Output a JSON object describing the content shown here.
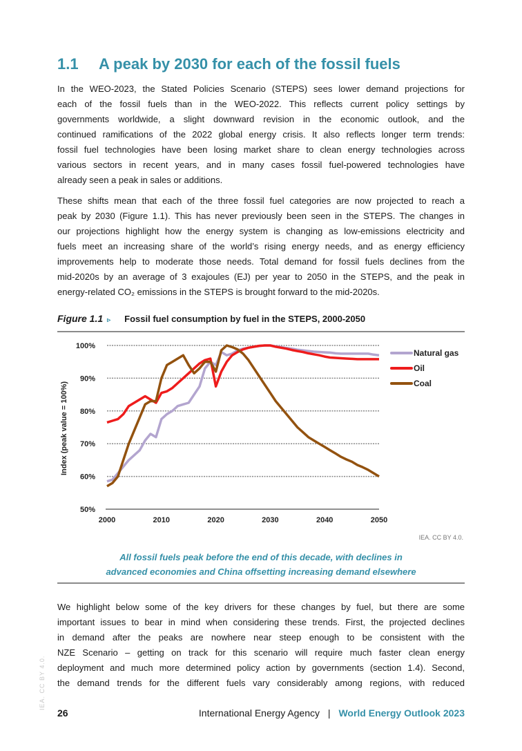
{
  "section": {
    "number": "1.1",
    "title": "A peak by 2030 for each of the fossil fuels"
  },
  "paragraphs": [
    [
      "In the WEO-2023, the Stated Policies Scenario (STEPS) sees lower demand projections for",
      "each of the fossil fuels than in the WEO-2022. This reflects current policy settings by",
      "governments worldwide, a slight downward revision in the economic outlook, and the",
      "continued ramifications of the 2022 global energy crisis. It also reflects longer term trends:",
      "fossil fuel technologies have been losing market share to clean energy technologies across",
      "various sectors in recent years, and in many cases fossil fuel-powered technologies have",
      "already seen a peak in sales or additions."
    ],
    [
      "These shifts mean that each of the three fossil fuel categories are now projected to reach a",
      "peak by 2030 (Figure 1.1). This has never previously been seen in the STEPS. The changes in",
      "our projections highlight how the energy system is changing as low-emissions electricity and",
      "fuels meet an increasing share of the world’s rising energy needs, and as energy efficiency",
      "improvements help to moderate those needs. Total demand for fossil fuels declines from the",
      "mid-2020s by an average of 3 exajoules (EJ) per year to 2050 in the STEPS, and the peak in",
      "energy-related CO₂ emissions in the STEPS is brought forward to the mid-2020s."
    ],
    [
      "We highlight below some of the key drivers for these changes by fuel, but there are some",
      "important issues to bear in mind when considering these trends. First, the projected declines",
      "in demand after the peaks are nowhere near steep enough to be consistent with the",
      "NZE Scenario – getting on track for this scenario will require much faster clean energy",
      "deployment and much more determined policy action by governments (section 1.4). Second,",
      "the demand trends for the different fuels vary considerably among regions, with reduced"
    ]
  ],
  "figure": {
    "label": "Figure 1.1",
    "marker": "▹",
    "title": "Fossil fuel consumption by fuel in the STEPS, 2000-2050",
    "source": "IEA. CC BY 4.0.",
    "caption": [
      "All fossil fuels peak before the end of this decade, with declines in",
      "advanced economies and China offsetting increasing demand elsewhere"
    ]
  },
  "chart_data": {
    "type": "line",
    "title": "Fossil fuel consumption by fuel in the STEPS, 2000-2050",
    "xlabel": "",
    "ylabel": "Index (peak value = 100%)",
    "xlim": [
      2000,
      2050
    ],
    "ylim": [
      50,
      100
    ],
    "xticks": [
      "2000",
      "2010",
      "2020",
      "2030",
      "2040",
      "2050"
    ],
    "yticks": [
      "50%",
      "60%",
      "70%",
      "80%",
      "90%",
      "100%"
    ],
    "ytick_values": [
      50,
      60,
      70,
      80,
      90,
      100
    ],
    "grid": "horizontal dashed",
    "legend": "right",
    "x_start": 2000,
    "series": [
      {
        "name": "Natural gas",
        "color": "#b3a5cf",
        "values": [
          58.5,
          59,
          61,
          63,
          65,
          66.5,
          68,
          71,
          73,
          72,
          77.5,
          79,
          80,
          81.5,
          82,
          82.5,
          85,
          87.5,
          93,
          95,
          94,
          98,
          97,
          97.5,
          98.5,
          99,
          99.3,
          99.6,
          99.8,
          100,
          100,
          99.7,
          99.5,
          99.2,
          99,
          98.7,
          98.5,
          98.3,
          98.1,
          98,
          97.9,
          97.8,
          97.6,
          97.5,
          97.5,
          97.5,
          97.5,
          97.5,
          97.5,
          97.2,
          97
        ]
      },
      {
        "name": "Oil",
        "color": "#ee1c1c",
        "values": [
          76.5,
          77,
          77.5,
          79,
          81.5,
          82.5,
          83.5,
          84.5,
          83.5,
          82.5,
          85.5,
          86,
          87,
          88.5,
          90,
          91.5,
          93,
          94.5,
          95.5,
          96,
          87.5,
          92,
          95,
          97,
          98,
          98.8,
          99.3,
          99.6,
          99.9,
          100,
          100,
          99.6,
          99.3,
          99,
          98.6,
          98.3,
          98,
          97.6,
          97.3,
          97,
          96.6,
          96.3,
          96.2,
          96.1,
          96,
          95.9,
          95.8,
          95.8,
          95.8,
          95.8,
          95.8
        ]
      },
      {
        "name": "Coal",
        "color": "#93520f",
        "values": [
          57,
          58,
          60,
          65,
          70,
          74,
          78,
          82,
          83,
          83,
          90,
          94,
          95,
          96,
          97,
          94,
          91.5,
          93,
          95,
          95,
          92,
          98.5,
          100,
          99.5,
          98.8,
          97.5,
          95.5,
          93,
          90.5,
          88,
          85.5,
          83,
          81,
          79,
          77,
          75,
          73.5,
          72,
          71,
          70,
          69,
          68,
          67,
          66,
          65.2,
          64.5,
          63.5,
          62.8,
          62,
          61,
          60
        ]
      }
    ]
  },
  "footer": {
    "page": "26",
    "agency": "International Energy Agency",
    "separator": "|",
    "publication": "World Energy Outlook 2023",
    "watermark": "IEA. CC BY 4.0."
  }
}
